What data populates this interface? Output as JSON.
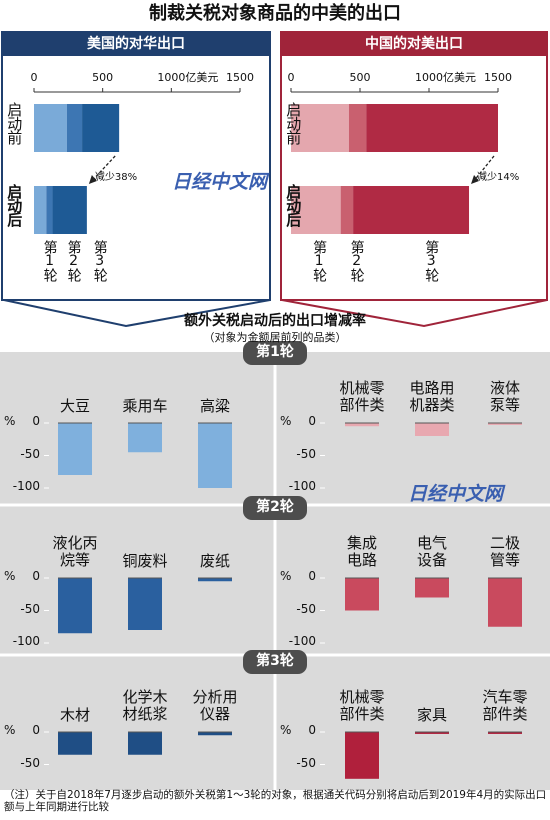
{
  "title": "制裁关税对象商品的中美的出口",
  "change_title": "额外关税启动后的出口增减率",
  "change_subtitle": "（对象为金额居前列的品类）",
  "watermarks": [
    "日经中文网",
    "日经中文网"
  ],
  "footnote": "（注）关于自2018年7月逐步启动的额外关税第1～3轮的对象，根据通关代码分别将启动后到2019年4月的实际出口额与上年同期进行比较",
  "chart_data": [
    {
      "type": "stacked-bar",
      "title": "美国的对华出口",
      "header_color": "#1f3f6e",
      "categories": [
        "启动前",
        "启动后"
      ],
      "series": [
        {
          "name": "第1轮",
          "color": "#7aaad8",
          "values": [
            240,
            90
          ]
        },
        {
          "name": "第2轮",
          "color": "#3d76b3",
          "values": [
            110,
            45
          ]
        },
        {
          "name": "第3轮",
          "color": "#1e5a95",
          "values": [
            270,
            250
          ]
        }
      ],
      "xlim": [
        0,
        1500
      ],
      "xticks": [
        0,
        500,
        1000,
        1500
      ],
      "unit": "亿美元",
      "annotation": "减少38%"
    },
    {
      "type": "stacked-bar",
      "title": "中国的对美出口",
      "header_color": "#a0243a",
      "categories": [
        "启动前",
        "启动后"
      ],
      "series": [
        {
          "name": "第1轮",
          "color": "#e4a7ae",
          "values": [
            420,
            360
          ]
        },
        {
          "name": "第2轮",
          "color": "#c9606f",
          "values": [
            125,
            90
          ]
        },
        {
          "name": "第3轮",
          "color": "#b02a44",
          "values": [
            955,
            840
          ]
        }
      ],
      "xlim": [
        0,
        1500
      ],
      "xticks": [
        0,
        500,
        1000,
        1500
      ],
      "unit": "亿美元",
      "annotation": "减少14%"
    },
    {
      "type": "bar",
      "round": "第1轮",
      "categories": [
        "大豆",
        "乘用车",
        "高粱"
      ],
      "values": [
        -80,
        -45,
        -100
      ],
      "color": "#7fb0dd",
      "ylim": [
        -105,
        0
      ],
      "yticks": [
        0,
        -50,
        -100
      ],
      "unit": "%"
    },
    {
      "type": "bar",
      "categories": [
        "机械零\n部件类",
        "电路用\n机器类",
        "液体\n泵等"
      ],
      "values": [
        -5,
        -20,
        -3
      ],
      "color": "#e8a8b0",
      "ylim": [
        -105,
        0
      ],
      "yticks": [
        0,
        -50,
        -100
      ],
      "unit": "%"
    },
    {
      "type": "bar",
      "round": "第2轮",
      "categories": [
        "液化丙\n烷等",
        "铜废料",
        "废纸"
      ],
      "values": [
        -85,
        -80,
        -5
      ],
      "color": "#2a609f",
      "ylim": [
        -105,
        0
      ],
      "yticks": [
        0,
        -50,
        -100
      ],
      "unit": "%"
    },
    {
      "type": "bar",
      "categories": [
        "集成\n电路",
        "电气\n设备",
        "二极\n管等"
      ],
      "values": [
        -50,
        -30,
        -75
      ],
      "color": "#c94a5e",
      "ylim": [
        -105,
        0
      ],
      "yticks": [
        0,
        -50,
        -100
      ],
      "unit": "%"
    },
    {
      "type": "bar",
      "round": "第3轮",
      "categories": [
        "木材",
        "化学木\n材纸浆",
        "分析用\n仪器"
      ],
      "values": [
        -35,
        -35,
        -5
      ],
      "color": "#1f4e85",
      "ylim": [
        -72,
        0
      ],
      "yticks": [
        0,
        -50
      ],
      "unit": "%"
    },
    {
      "type": "bar",
      "categories": [
        "机械零\n部件类",
        "家具",
        "汽车零\n部件类"
      ],
      "values": [
        -72,
        -3,
        -3
      ],
      "color": "#b0203c",
      "ylim": [
        -72,
        0
      ],
      "yticks": [
        0,
        -50
      ],
      "unit": "%"
    }
  ]
}
